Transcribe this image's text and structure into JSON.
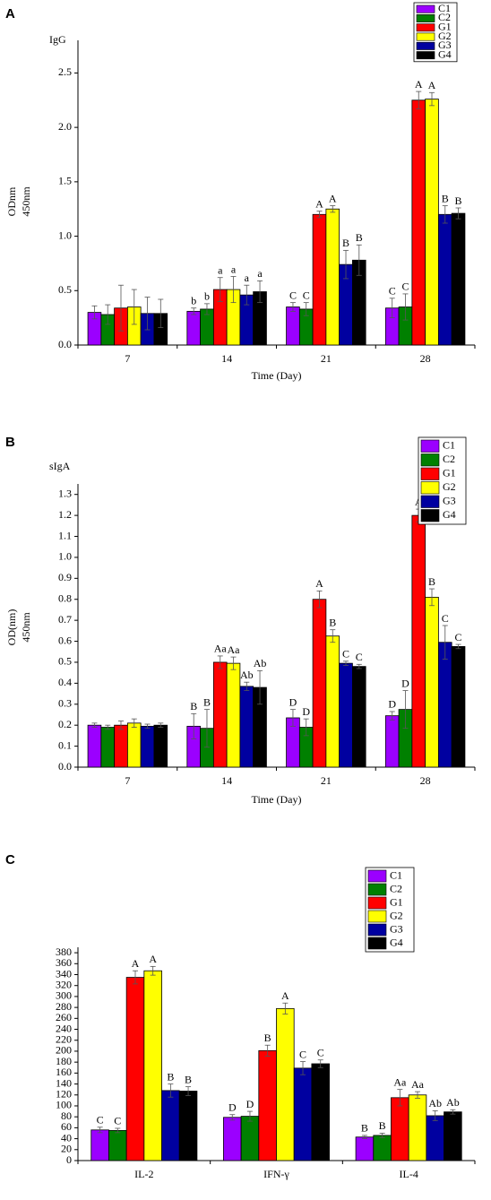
{
  "chart_data": [
    {
      "type": "bar",
      "panel": "A",
      "title": "IgG",
      "y_label": [
        "ODnm",
        "450nm"
      ],
      "x_label": "Time (Day)",
      "categories": [
        "7",
        "14",
        "21",
        "28"
      ],
      "ylim": [
        0,
        2.8
      ],
      "yticks": [
        {
          "value": 0,
          "label": "0.0"
        },
        0.5,
        {
          "value": 1,
          "label": "1.0"
        },
        1.5,
        {
          "value": 2,
          "label": "2.0"
        },
        2.5
      ],
      "legend": "upper right",
      "series": [
        {
          "name": "C1",
          "color": "#9b00ff",
          "values": [
            0.3,
            0.31,
            0.35,
            0.34
          ],
          "errors": [
            0.06,
            0.03,
            0.04,
            0.09
          ],
          "labels": [
            null,
            "b",
            "C",
            "C"
          ]
        },
        {
          "name": "C2",
          "color": "#008000",
          "values": [
            0.28,
            0.33,
            0.33,
            0.35
          ],
          "errors": [
            0.09,
            0.05,
            0.06,
            0.12
          ],
          "labels": [
            null,
            "b",
            "C",
            "C"
          ]
        },
        {
          "name": "G1",
          "color": "#ff0000",
          "values": [
            0.34,
            0.51,
            1.2,
            2.25
          ],
          "errors": [
            0.21,
            0.11,
            0.03,
            0.08
          ],
          "labels": [
            null,
            "a",
            "A",
            "A"
          ]
        },
        {
          "name": "G2",
          "color": "#ffff00",
          "values": [
            0.35,
            0.51,
            1.25,
            2.26
          ],
          "errors": [
            0.16,
            0.12,
            0.03,
            0.06
          ],
          "labels": [
            null,
            "a",
            "A",
            "A"
          ]
        },
        {
          "name": "G3",
          "color": "#0000a0",
          "values": [
            0.29,
            0.46,
            0.74,
            1.2
          ],
          "errors": [
            0.15,
            0.09,
            0.13,
            0.08
          ],
          "labels": [
            null,
            "a",
            "B",
            "B"
          ]
        },
        {
          "name": "G4",
          "color": "#000000",
          "values": [
            0.29,
            0.49,
            0.78,
            1.21
          ],
          "errors": [
            0.13,
            0.1,
            0.14,
            0.05
          ],
          "labels": [
            null,
            "a",
            "B",
            "B"
          ]
        }
      ]
    },
    {
      "type": "bar",
      "panel": "B",
      "title": "sIgA",
      "y_label": [
        "OD(nm)",
        "450nm"
      ],
      "x_label": "Time (Day)",
      "categories": [
        "7",
        "14",
        "21",
        "28"
      ],
      "ylim": [
        0,
        1.35
      ],
      "yticks": [
        {
          "value": 0,
          "label": "0.0"
        },
        0.1,
        0.2,
        0.3,
        0.4,
        0.5,
        0.6,
        0.7,
        0.8,
        0.9,
        {
          "value": 1,
          "label": "1.0"
        },
        1.1,
        1.2,
        1.3
      ],
      "legend": "upper right",
      "series": [
        {
          "name": "C1",
          "color": "#9b00ff",
          "values": [
            0.2,
            0.195,
            0.235,
            0.245
          ],
          "errors": [
            0.01,
            0.06,
            0.04,
            0.02
          ],
          "labels": [
            null,
            "B",
            "D",
            "D"
          ]
        },
        {
          "name": "C2",
          "color": "#008000",
          "values": [
            0.19,
            0.185,
            0.19,
            0.275
          ],
          "errors": [
            0.01,
            0.09,
            0.04,
            0.09
          ],
          "labels": [
            null,
            "B",
            "D",
            "D"
          ]
        },
        {
          "name": "G1",
          "color": "#ff0000",
          "values": [
            0.2,
            0.5,
            0.8,
            1.2
          ],
          "errors": [
            0.02,
            0.03,
            0.04,
            0.03
          ],
          "labels": [
            null,
            "Aa",
            "A",
            "A"
          ]
        },
        {
          "name": "G2",
          "color": "#ffff00",
          "values": [
            0.21,
            0.495,
            0.625,
            0.81
          ],
          "errors": [
            0.02,
            0.03,
            0.03,
            0.04
          ],
          "labels": [
            null,
            "Aa",
            "B",
            "B"
          ]
        },
        {
          "name": "G3",
          "color": "#0000a0",
          "values": [
            0.195,
            0.385,
            0.495,
            0.595
          ],
          "errors": [
            0.01,
            0.02,
            0.01,
            0.08
          ],
          "labels": [
            null,
            "Ab",
            "C",
            "C"
          ]
        },
        {
          "name": "G4",
          "color": "#000000",
          "values": [
            0.2,
            0.38,
            0.48,
            0.575
          ],
          "errors": [
            0.01,
            0.08,
            0.01,
            0.01
          ],
          "labels": [
            null,
            "Ab",
            "C",
            "C"
          ]
        }
      ]
    },
    {
      "type": "bar",
      "panel": "C",
      "categories": [
        "IL-2",
        "IFN-γ",
        "IL-4"
      ],
      "ylim": [
        0,
        390
      ],
      "yticks": [
        0,
        20,
        40,
        60,
        80,
        100,
        120,
        140,
        160,
        180,
        200,
        220,
        240,
        260,
        280,
        300,
        320,
        340,
        360,
        380
      ],
      "legend": "upper right",
      "series": [
        {
          "name": "C1",
          "color": "#9b00ff",
          "values": [
            56,
            79,
            43
          ],
          "errors": [
            5,
            5,
            3
          ],
          "labels": [
            "C",
            "D",
            "B"
          ]
        },
        {
          "name": "C2",
          "color": "#008000",
          "values": [
            55,
            81,
            46
          ],
          "errors": [
            4,
            9,
            4
          ],
          "labels": [
            "C",
            "D",
            "B"
          ]
        },
        {
          "name": "G1",
          "color": "#ff0000",
          "values": [
            335,
            201,
            115
          ],
          "errors": [
            12,
            10,
            15
          ],
          "labels": [
            "A",
            "B",
            "Aa"
          ]
        },
        {
          "name": "G2",
          "color": "#ffff00",
          "values": [
            347,
            278,
            120
          ],
          "errors": [
            8,
            10,
            6
          ],
          "labels": [
            "A",
            "A",
            "Aa"
          ]
        },
        {
          "name": "G3",
          "color": "#0000a0",
          "values": [
            128,
            169,
            82
          ],
          "errors": [
            12,
            12,
            9
          ],
          "labels": [
            "B",
            "C",
            "Ab"
          ]
        },
        {
          "name": "G4",
          "color": "#000000",
          "values": [
            127,
            177,
            89
          ],
          "errors": [
            8,
            7,
            4
          ],
          "labels": [
            "B",
            "C",
            "Ab"
          ]
        }
      ]
    }
  ]
}
